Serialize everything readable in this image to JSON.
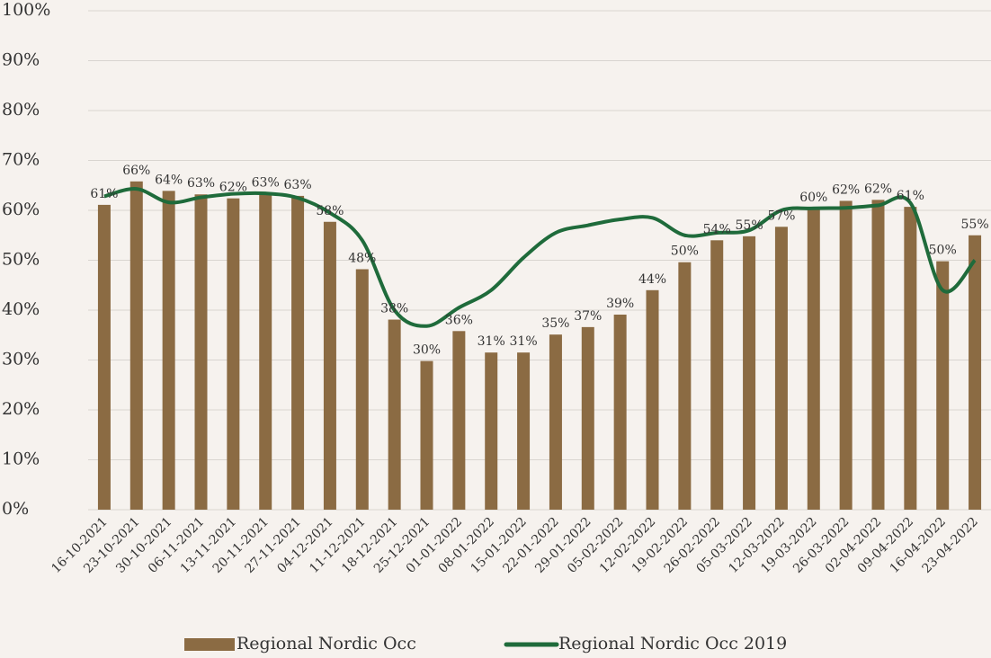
{
  "chart_data": {
    "type": "bar-line",
    "categories": [
      "16-10-2021",
      "23-10-2021",
      "30-10-2021",
      "06-11-2021",
      "13-11-2021",
      "20-11-2021",
      "27-11-2021",
      "04-12-2021",
      "11-12-2021",
      "18-12-2021",
      "25-12-2021",
      "01-01-2022",
      "08-01-2022",
      "15-01-2022",
      "22-01-2022",
      "29-01-2022",
      "05-02-2022",
      "12-02-2022",
      "19-02-2022",
      "26-02-2022",
      "05-03-2022",
      "12-03-2022",
      "19-03-2022",
      "26-03-2022",
      "02-04-2022",
      "09-04-2022",
      "16-04-2022",
      "23-04-2022"
    ],
    "series": [
      {
        "name": "Regional Nordic Occ",
        "type": "bar",
        "color": "#8b6b43",
        "values": [
          61.1,
          65.8,
          63.9,
          63.2,
          62.4,
          63.3,
          62.9,
          57.7,
          48.2,
          38.1,
          29.8,
          35.8,
          31.5,
          31.5,
          35.1,
          36.6,
          39.1,
          44.0,
          49.6,
          54.0,
          54.8,
          56.7,
          60.4,
          61.9,
          62.1,
          60.7,
          49.8,
          55.0
        ],
        "value_labels": [
          "61%",
          "66%",
          "64%",
          "63%",
          "62%",
          "63%",
          "63%",
          "58%",
          "48%",
          "38%",
          "30%",
          "36%",
          "31%",
          "31%",
          "35%",
          "37%",
          "39%",
          "44%",
          "50%",
          "54%",
          "55%",
          "57%",
          "60%",
          "62%",
          "62%",
          "61%",
          "50%",
          "55%"
        ]
      },
      {
        "name": "Regional Nordic Occ 2019",
        "type": "line",
        "color": "#1f6b3b",
        "values": [
          62.8,
          64.3,
          61.6,
          62.6,
          63.3,
          63.4,
          62.5,
          59.5,
          54.0,
          40.0,
          36.8,
          40.5,
          44.0,
          50.5,
          55.5,
          57.0,
          58.2,
          58.5,
          55.0,
          55.5,
          56.0,
          60.0,
          60.4,
          60.5,
          61.0,
          61.5,
          44.0,
          50.0
        ]
      }
    ],
    "ylim": [
      0,
      100
    ],
    "yticks": [
      {
        "value": 0,
        "label": "0%"
      },
      {
        "value": 10,
        "label": "10%"
      },
      {
        "value": 20,
        "label": "20%"
      },
      {
        "value": 30,
        "label": "30%"
      },
      {
        "value": 40,
        "label": "40%"
      },
      {
        "value": 50,
        "label": "50%"
      },
      {
        "value": 60,
        "label": "60%"
      },
      {
        "value": 70,
        "label": "70%"
      },
      {
        "value": 80,
        "label": "80%"
      },
      {
        "value": 90,
        "label": "90%"
      },
      {
        "value": 100,
        "label": "100%"
      }
    ],
    "grid": true,
    "legend": "bottom"
  }
}
